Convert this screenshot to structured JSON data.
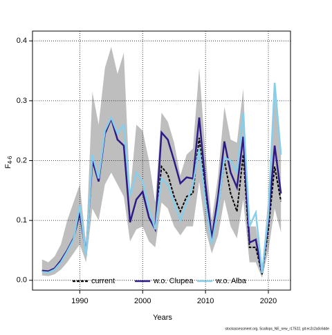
{
  "chart_data": {
    "type": "line",
    "x_label": "Years",
    "y_label": "F",
    "y_label_sub": "4-6",
    "footer": "stockassessment.org, Scallops_NE_new_r17522, git:ec2c2a0c6dde",
    "x": [
      1984,
      1985,
      1986,
      1987,
      1988,
      1989,
      1990,
      1991,
      1992,
      1993,
      1994,
      1995,
      1996,
      1997,
      1998,
      1999,
      2000,
      2001,
      2002,
      2003,
      2004,
      2005,
      2006,
      2007,
      2008,
      2009,
      2010,
      2011,
      2012,
      2013,
      2014,
      2015,
      2016,
      2017,
      2018,
      2019,
      2020,
      2021,
      2022
    ],
    "band": {
      "color": "#bebebe",
      "upper": [
        0.035,
        0.03,
        0.04,
        0.06,
        0.1,
        0.13,
        0.16,
        0.06,
        0.315,
        0.26,
        0.355,
        0.39,
        0.345,
        0.38,
        0.145,
        0.26,
        0.25,
        0.2,
        0.13,
        0.28,
        0.265,
        0.23,
        0.175,
        0.21,
        0.22,
        0.355,
        0.21,
        0.1,
        0.175,
        0.29,
        0.235,
        0.23,
        0.32,
        0.09,
        0.09,
        0.02,
        0.14,
        0.31,
        0.21
      ],
      "lower": [
        0.008,
        0.007,
        0.01,
        0.018,
        0.03,
        0.045,
        0.06,
        0.03,
        0.12,
        0.1,
        0.16,
        0.18,
        0.16,
        0.14,
        0.065,
        0.085,
        0.09,
        0.065,
        0.055,
        0.13,
        0.12,
        0.09,
        0.075,
        0.09,
        0.09,
        0.165,
        0.085,
        0.045,
        0.075,
        0.135,
        0.09,
        0.07,
        0.135,
        0.03,
        0.03,
        0.004,
        0.05,
        0.12,
        0.08
      ]
    },
    "series": [
      {
        "name": "current",
        "color": "#000000",
        "dashed": true,
        "values": [
          0.016,
          0.015,
          0.02,
          0.033,
          0.05,
          0.07,
          0.11,
          0.045,
          0.2,
          0.165,
          0.245,
          0.27,
          0.235,
          0.225,
          0.097,
          0.135,
          0.148,
          0.105,
          0.085,
          0.19,
          0.177,
          0.14,
          0.115,
          0.14,
          0.145,
          0.238,
          0.14,
          0.065,
          0.12,
          0.2,
          0.145,
          0.115,
          0.21,
          0.055,
          0.055,
          0.01,
          0.085,
          0.19,
          0.132
        ]
      },
      {
        "name": "w.o. Clupea",
        "color": "#2e1a87",
        "dashed": false,
        "values": [
          0.016,
          0.015,
          0.02,
          0.033,
          0.05,
          0.07,
          0.113,
          0.045,
          0.2,
          0.165,
          0.245,
          0.27,
          0.235,
          0.225,
          0.097,
          0.135,
          0.148,
          0.105,
          0.085,
          0.247,
          0.235,
          0.2,
          0.162,
          0.172,
          0.17,
          0.272,
          0.16,
          0.07,
          0.14,
          0.232,
          0.18,
          0.155,
          0.24,
          0.063,
          0.068,
          0.012,
          0.1,
          0.225,
          0.145
        ]
      },
      {
        "name": "w.o. Alba",
        "color": "#87ceeb",
        "dashed": false,
        "values": [
          0.014,
          0.013,
          0.018,
          0.03,
          0.048,
          0.068,
          0.125,
          0.04,
          0.21,
          0.17,
          0.25,
          0.272,
          0.245,
          0.26,
          0.14,
          0.18,
          0.165,
          0.12,
          0.085,
          0.17,
          0.16,
          0.13,
          0.1,
          0.13,
          0.16,
          0.22,
          0.13,
          0.06,
          0.12,
          0.205,
          0.2,
          0.18,
          0.28,
          0.09,
          0.113,
          0.012,
          0.11,
          0.33,
          0.21
        ]
      }
    ],
    "xlim": [
      1982.48,
      2023.52
    ],
    "ylim": [
      -0.0164,
      0.4164
    ],
    "xticks": [
      1990,
      2000,
      2010,
      2020
    ],
    "yticks": [
      {
        "value": 0,
        "label": "0.0"
      },
      0.1,
      0.2,
      0.3,
      0.4
    ],
    "grid": true,
    "legend": "bottom"
  }
}
